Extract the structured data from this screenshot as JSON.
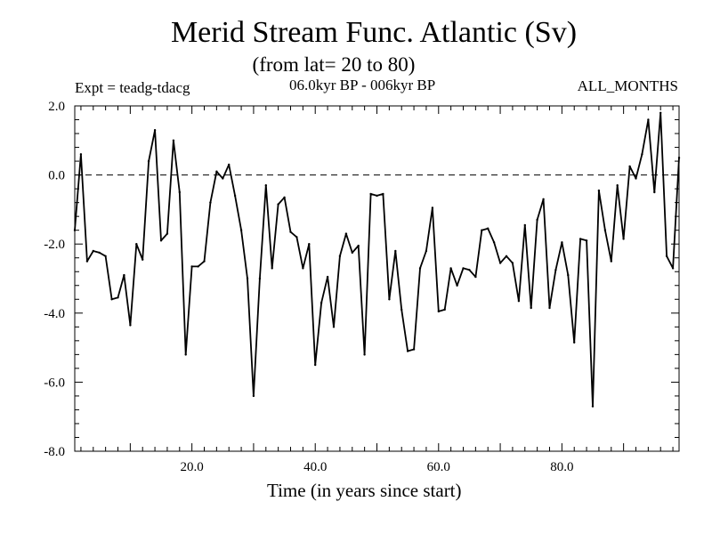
{
  "header": {
    "title": "Merid Stream Func. Atlantic (Sv)",
    "subtitle": "(from lat= 20 to 80)",
    "experiment": "Expt = teadg-tdacg",
    "period": "06.0kyr BP - 006kyr BP",
    "months": "ALL_MONTHS"
  },
  "chart_data": {
    "type": "line",
    "title": "Merid Stream Func. Atlantic (Sv)",
    "subtitle": "(from lat= 20 to 80)",
    "xlabel": "Time (in years since start)",
    "ylabel": "",
    "xlim": [
      1,
      99
    ],
    "ylim": [
      -8,
      2
    ],
    "xticks": [
      20,
      40,
      60,
      80
    ],
    "xtick_labels": [
      "20.0",
      "40.0",
      "60.0",
      "80.0"
    ],
    "yticks": [
      2,
      0,
      -2,
      -4,
      -6,
      -8
    ],
    "ytick_labels": [
      "2.0",
      "0.0",
      "-2.0",
      "-4.0",
      "-6.0",
      "-8.0"
    ],
    "reference_line": {
      "y": 0,
      "style": "dashed"
    },
    "series": [
      {
        "name": "Merid Stream Func. Atlantic",
        "x": [
          1,
          2,
          3,
          4,
          5,
          6,
          7,
          8,
          9,
          10,
          11,
          12,
          13,
          14,
          15,
          16,
          17,
          18,
          19,
          20,
          21,
          22,
          23,
          24,
          25,
          26,
          27,
          28,
          29,
          30,
          31,
          32,
          33,
          34,
          35,
          36,
          37,
          38,
          39,
          40,
          41,
          42,
          43,
          44,
          45,
          46,
          47,
          48,
          49,
          50,
          51,
          52,
          53,
          54,
          55,
          56,
          57,
          58,
          59,
          60,
          61,
          62,
          63,
          64,
          65,
          66,
          67,
          68,
          69,
          70,
          71,
          72,
          73,
          74,
          75,
          76,
          77,
          78,
          79,
          80,
          81,
          82,
          83,
          84,
          85,
          86,
          87,
          88,
          89,
          90,
          91,
          92,
          93,
          94,
          95,
          96,
          97,
          98,
          99
        ],
        "values": [
          -1.6,
          0.6,
          -2.5,
          -2.2,
          -2.25,
          -2.35,
          -3.6,
          -3.55,
          -2.9,
          -4.35,
          -2.0,
          -2.45,
          0.4,
          1.3,
          -1.9,
          -1.7,
          1.0,
          -0.5,
          -5.2,
          -2.65,
          -2.65,
          -2.5,
          -0.8,
          0.1,
          -0.1,
          0.3,
          -0.6,
          -1.6,
          -3.0,
          -6.4,
          -3.0,
          -0.3,
          -2.7,
          -0.85,
          -0.65,
          -1.65,
          -1.8,
          -2.7,
          -2.0,
          -5.5,
          -3.7,
          -2.95,
          -4.4,
          -2.35,
          -1.7,
          -2.25,
          -2.05,
          -5.2,
          -0.55,
          -0.6,
          -0.55,
          -3.6,
          -2.2,
          -3.9,
          -5.1,
          -5.05,
          -2.7,
          -2.2,
          -0.95,
          -3.95,
          -3.9,
          -2.7,
          -3.2,
          -2.7,
          -2.75,
          -2.95,
          -1.6,
          -1.55,
          -1.95,
          -2.55,
          -2.35,
          -2.55,
          -3.65,
          -1.45,
          -3.85,
          -1.3,
          -0.7,
          -3.85,
          -2.75,
          -1.95,
          -2.9,
          -4.85,
          -1.85,
          -1.9,
          -6.7,
          -0.45,
          -1.6,
          -2.5,
          -0.3,
          -1.85,
          0.25,
          -0.1,
          0.6,
          1.6,
          -0.5,
          1.8,
          -2.35,
          -2.7,
          0.5
        ]
      }
    ]
  }
}
